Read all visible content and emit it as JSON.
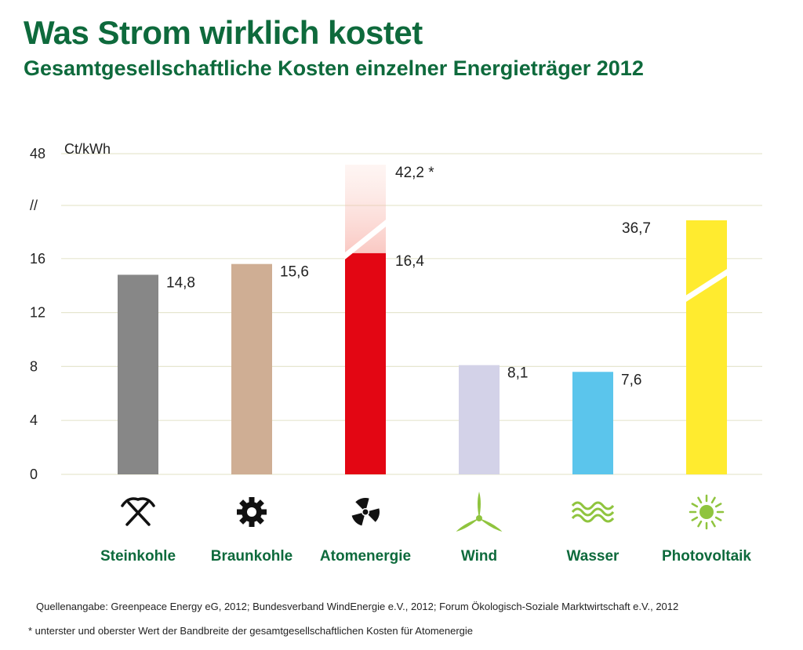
{
  "header": {
    "title": "Was Strom wirklich kostet",
    "subtitle": "Gesamtgesellschaftliche Kosten einzelner Energieträger 2012"
  },
  "chart_data": {
    "type": "bar",
    "unit_label": "Ct/kWh",
    "axis_break_label": "//",
    "y_ticks": [
      {
        "label": "0",
        "value": 0
      },
      {
        "label": "4",
        "value": 4
      },
      {
        "label": "8",
        "value": 8
      },
      {
        "label": "12",
        "value": 12
      },
      {
        "label": "16",
        "value": 16
      },
      {
        "label": "48",
        "value": 48
      }
    ],
    "axis_break": true,
    "grid": true,
    "categories": [
      "Steinkohle",
      "Braunkohle",
      "Atomenergie",
      "Wind",
      "Wasser",
      "Photovoltaik"
    ],
    "bars": [
      {
        "category": "Steinkohle",
        "value": 14.8,
        "label": "14,8",
        "color": "#878787",
        "icon": "pick-axes-icon"
      },
      {
        "category": "Braunkohle",
        "value": 15.6,
        "label": "15,6",
        "color": "#cfae94",
        "icon": "gear-icon"
      },
      {
        "category": "Atomenergie",
        "value": 16.4,
        "value_high": 42.2,
        "label": "16,4",
        "label_high": "42,2 *",
        "color": "#e30613",
        "icon": "radiation-icon"
      },
      {
        "category": "Wind",
        "value": 8.1,
        "label": "8,1",
        "color": "#d3d2e8",
        "icon": "wind-turbine-icon"
      },
      {
        "category": "Wasser",
        "value": 7.6,
        "label": "7,6",
        "color": "#5bc5ec",
        "icon": "water-waves-icon"
      },
      {
        "category": "Photovoltaik",
        "value": 36.7,
        "label": "36,7",
        "color": "#ffeb2f",
        "icon": "sun-icon"
      }
    ],
    "colors": {
      "category_text": "#0e6a3c",
      "grid": "#e6e6cf",
      "icon_dark": "#111111",
      "icon_green": "#8fc43e"
    }
  },
  "footer": {
    "source": "Quellenangabe: Greenpeace Energy eG, 2012; Bundesverband WindEnergie e.V., 2012; Forum Ökologisch-Soziale Marktwirtschaft e.V., 2012",
    "footnote": "* unterster und oberster Wert der Bandbreite der gesamtgesellschaftlichen Kosten für Atomenergie"
  }
}
